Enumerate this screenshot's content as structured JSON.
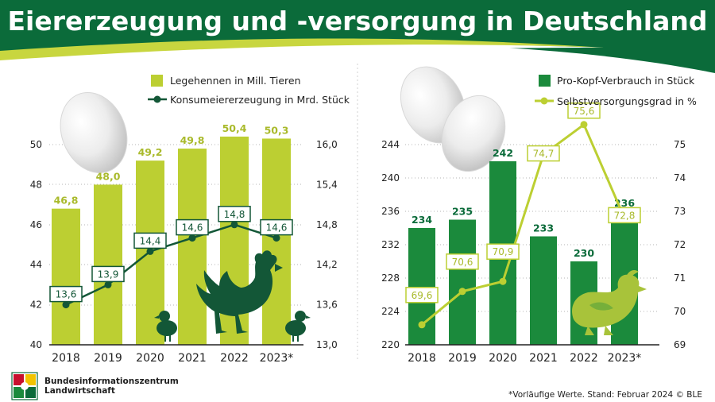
{
  "title": "Eiererzeugung und -versorgung in Deutschland",
  "colors": {
    "dark_green": "#0b6b3a",
    "mid_green": "#1b8a3c",
    "lime": "#bccf32",
    "lime_light": "#c8d63f",
    "marker": "#135737",
    "chick_light": "#a8c33a"
  },
  "chart_data": [
    {
      "type": "bar",
      "categories": [
        "2018",
        "2019",
        "2020",
        "2021",
        "2022",
        "2023*"
      ],
      "series": [
        {
          "name": "Legehennen in Mill. Tieren",
          "type": "bar",
          "axis": "left",
          "values": [
            46.8,
            48.0,
            49.2,
            49.8,
            50.4,
            50.3
          ],
          "labels": [
            "46,8",
            "48,0",
            "49,2",
            "49,8",
            "50,4",
            "50,3"
          ]
        },
        {
          "name": "Konsumeiererzeugung in Mrd. Stück",
          "type": "line",
          "axis": "right",
          "values": [
            13.6,
            13.9,
            14.4,
            14.6,
            14.8,
            14.6
          ],
          "labels": [
            "13,6",
            "13,9",
            "14,4",
            "14,6",
            "14,8",
            "14,6"
          ]
        }
      ],
      "left_axis": {
        "range": [
          40,
          50
        ],
        "ticks": [
          "40",
          "42",
          "44",
          "46",
          "48",
          "50"
        ]
      },
      "right_axis": {
        "range": [
          13.0,
          16.0
        ],
        "ticks": [
          "13,0",
          "13,6",
          "14,2",
          "14,8",
          "15,4",
          "16,0"
        ]
      },
      "legend": [
        "Legehennen in Mill. Tieren",
        "Konsumeiererzeugung in Mrd. Stück"
      ]
    },
    {
      "type": "bar",
      "categories": [
        "2018",
        "2019",
        "2020",
        "2021",
        "2022",
        "2023*"
      ],
      "series": [
        {
          "name": "Pro-Kopf-Verbrauch in Stück",
          "type": "bar",
          "axis": "left",
          "values": [
            234,
            235,
            242,
            233,
            230,
            236
          ],
          "labels": [
            "234",
            "235",
            "242",
            "233",
            "230",
            "236"
          ]
        },
        {
          "name": "Selbstversorgungsgrad in %",
          "type": "line",
          "axis": "right",
          "values": [
            69.6,
            70.6,
            70.9,
            74.7,
            75.6,
            72.8
          ],
          "labels": [
            "69,6",
            "70,6",
            "70,9",
            "74,7",
            "75,6",
            "72,8"
          ]
        }
      ],
      "left_axis": {
        "range": [
          220,
          246
        ],
        "ticks": [
          "220",
          "224",
          "228",
          "232",
          "236",
          "240",
          "244"
        ]
      },
      "right_axis": {
        "range": [
          69,
          75.6
        ],
        "ticks": [
          "69",
          "70",
          "71",
          "72",
          "73",
          "74",
          "75"
        ]
      },
      "legend": [
        "Pro-Kopf-Verbrauch in Stück",
        "Selbstversorgungsgrad in %"
      ]
    }
  ],
  "footer": {
    "note": "*Vorläufige Werte. Stand: Februar 2024 © BLE",
    "publisher_line1": "Bundesinformationszentrum",
    "publisher_line2": "Landwirtschaft"
  }
}
